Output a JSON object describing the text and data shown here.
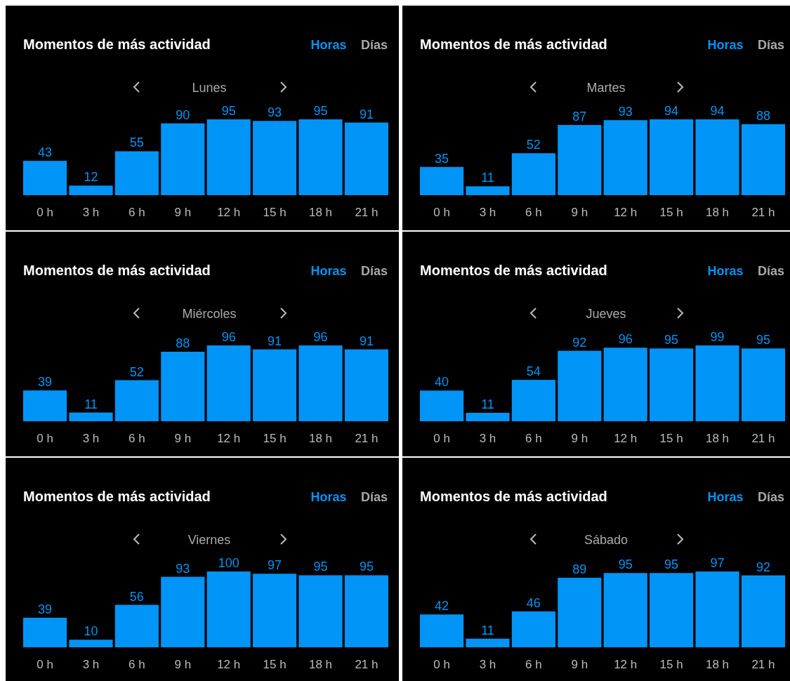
{
  "chart_data": [
    {
      "type": "bar",
      "title": "Momentos de más actividad",
      "subtitle": "Lunes",
      "annotations": [
        "Horas",
        "Días"
      ],
      "categories": [
        "0 h",
        "3 h",
        "6 h",
        "9 h",
        "12 h",
        "15 h",
        "18 h",
        "21 h"
      ],
      "values": [
        43,
        12,
        55,
        90,
        95,
        93,
        95,
        91
      ],
      "color": "#0095f6",
      "data_labels": true
    },
    {
      "type": "bar",
      "title": "Momentos de más actividad",
      "subtitle": "Martes",
      "annotations": [
        "Horas",
        "Días"
      ],
      "categories": [
        "0 h",
        "3 h",
        "6 h",
        "9 h",
        "12 h",
        "15 h",
        "18 h",
        "21 h"
      ],
      "values": [
        35,
        11,
        52,
        87,
        93,
        94,
        94,
        88
      ],
      "color": "#0095f6",
      "data_labels": true
    },
    {
      "type": "bar",
      "title": "Momentos de más actividad",
      "subtitle": "Miércoles",
      "annotations": [
        "Horas",
        "Días"
      ],
      "categories": [
        "0 h",
        "3 h",
        "6 h",
        "9 h",
        "12 h",
        "15 h",
        "18 h",
        "21 h"
      ],
      "values": [
        39,
        11,
        52,
        88,
        96,
        91,
        96,
        91
      ],
      "color": "#0095f6",
      "data_labels": true
    },
    {
      "type": "bar",
      "title": "Momentos de más actividad",
      "subtitle": "Jueves",
      "annotations": [
        "Horas",
        "Días"
      ],
      "categories": [
        "0 h",
        "3 h",
        "6 h",
        "9 h",
        "12 h",
        "15 h",
        "18 h",
        "21 h"
      ],
      "values": [
        40,
        11,
        54,
        92,
        96,
        95,
        99,
        95
      ],
      "color": "#0095f6",
      "data_labels": true
    },
    {
      "type": "bar",
      "title": "Momentos de más actividad",
      "subtitle": "Viernes",
      "annotations": [
        "Horas",
        "Días"
      ],
      "categories": [
        "0 h",
        "3 h",
        "6 h",
        "9 h",
        "12 h",
        "15 h",
        "18 h",
        "21 h"
      ],
      "values": [
        39,
        10,
        56,
        93,
        100,
        97,
        95,
        95
      ],
      "color": "#0095f6",
      "data_labels": true
    },
    {
      "type": "bar",
      "title": "Momentos de más actividad",
      "subtitle": "Sábado",
      "annotations": [
        "Horas",
        "Días"
      ],
      "categories": [
        "0 h",
        "3 h",
        "6 h",
        "9 h",
        "12 h",
        "15 h",
        "18 h",
        "21 h"
      ],
      "values": [
        42,
        11,
        46,
        89,
        95,
        95,
        97,
        92
      ],
      "color": "#0095f6",
      "data_labels": true
    }
  ]
}
